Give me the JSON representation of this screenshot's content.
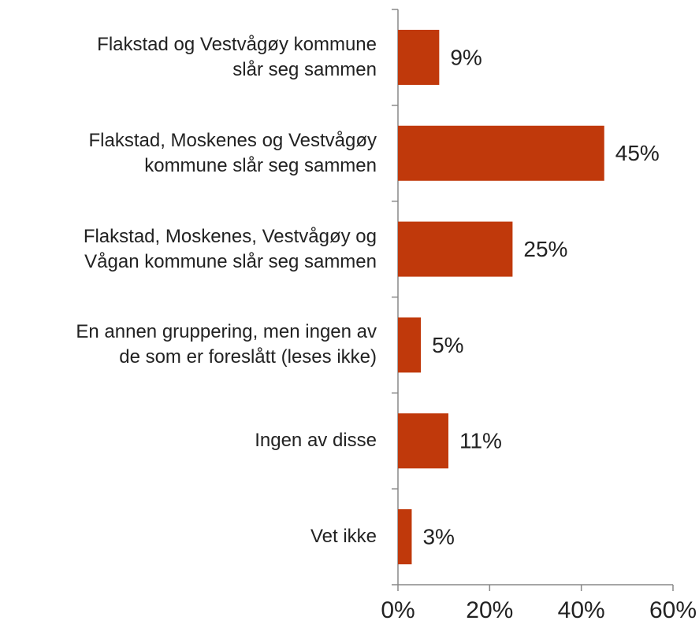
{
  "chart_data": {
    "type": "barh",
    "categories": [
      "Flakstad og Vestvågøy kommune\nslår seg sammen",
      "Flakstad, Moskenes og Vestvågøy\nkommune slår seg sammen",
      "Flakstad, Moskenes, Vestvågøy og\nVågan kommune slår seg sammen",
      "En annen gruppering, men ingen av\nde som er foreslått (leses ikke)",
      "Ingen av disse",
      "Vet ikke"
    ],
    "values": [
      9,
      45,
      25,
      5,
      11,
      3
    ],
    "value_labels": [
      "9%",
      "45%",
      "25%",
      "5%",
      "11%",
      "3%"
    ],
    "color": "#c0390b",
    "xlim": [
      0,
      60
    ],
    "xticks": [
      {
        "value": 0,
        "label": "0%"
      },
      {
        "value": 20,
        "label": "20%"
      },
      {
        "value": 40,
        "label": "40%"
      },
      {
        "value": 60,
        "label": "60%"
      }
    ]
  }
}
